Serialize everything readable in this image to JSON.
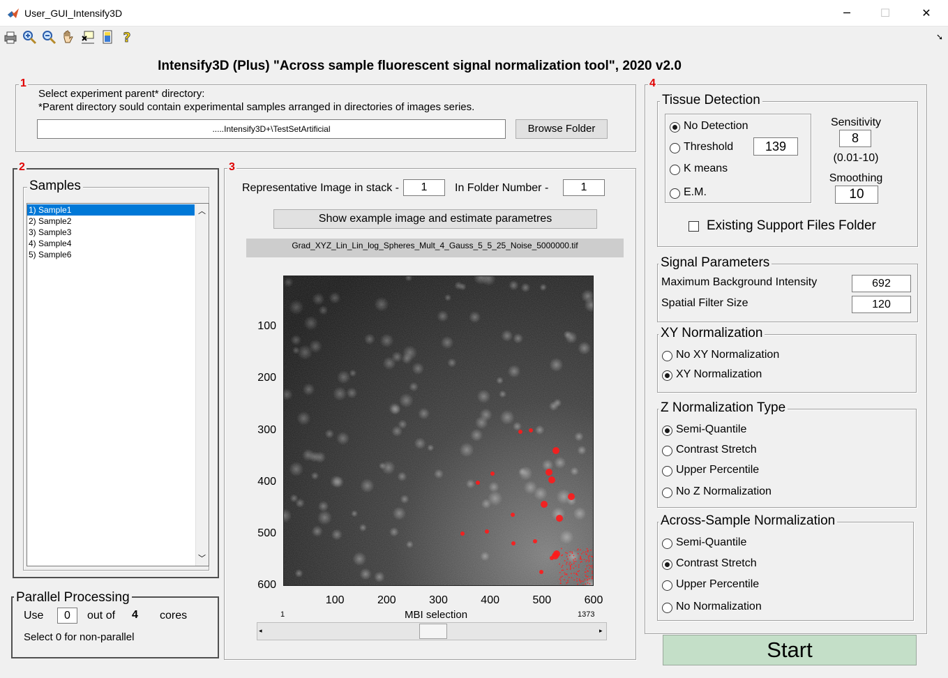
{
  "window": {
    "title": "User_GUI_Intensify3D",
    "minimize": "─",
    "maximize": "☐",
    "close": "✕"
  },
  "toolbar": {
    "icons": [
      "print-icon",
      "zoom-in-icon",
      "zoom-out-icon",
      "pan-hand-icon",
      "data-cursor-icon",
      "colorbar-icon",
      "help-icon"
    ]
  },
  "header": {
    "title": "Intensify3D (Plus)  \"Across sample fluorescent signal normalization tool\",  2020 v2.0"
  },
  "panel1": {
    "number": "1",
    "line1": "Select experiment parent* directory:",
    "line2": "*Parent directory sould contain experimental samples arranged in directories of images series.",
    "path": ".....Intensify3D+\\TestSetArtificial",
    "browse_label": "Browse Folder"
  },
  "panel2": {
    "number": "2",
    "legend": "Samples",
    "samples": [
      "1) Sample1",
      "2) Sample2",
      "3) Sample3",
      "4) Sample4",
      "5) Sample6"
    ]
  },
  "parallel": {
    "legend": "Parallel Processing",
    "use": "Use",
    "cores_value": "0",
    "out_of": "out of",
    "max_cores": "4",
    "cores": "cores",
    "hint": "Select 0 for non-parallel"
  },
  "panel3": {
    "number": "3",
    "rep_label": "Representative Image in stack -",
    "rep_value": "1",
    "folder_label": "In Folder Number -",
    "folder_value": "1",
    "show_button": "Show example image and estimate parametres",
    "filename": "Grad_XYZ_Lin_Lin_log_Spheres_Mult_4_Gauss_5_5_25_Noise_5000000.tif",
    "y_ticks": [
      "100",
      "200",
      "300",
      "400",
      "500",
      "600"
    ],
    "x_ticks": [
      "100",
      "200",
      "300",
      "400",
      "500",
      "600"
    ],
    "slider_min": "1",
    "slider_label": "MBI selection",
    "slider_max": "1373",
    "slider_value_fraction": 0.46
  },
  "panel4": {
    "number": "4",
    "tissue": {
      "legend": "Tissue Detection",
      "options": [
        "No Detection",
        "Threshold",
        "K means",
        "E.M."
      ],
      "selected": 0,
      "threshold_value": "139",
      "sensitivity_label": "Sensitivity",
      "sensitivity_value": "8",
      "sensitivity_range": "(0.01-10)",
      "smoothing_label": "Smoothing",
      "smoothing_value": "10",
      "support_label": "Existing Support Files Folder"
    },
    "signal": {
      "legend": "Signal Parameters",
      "mbi_label": "Maximum Background Intensity",
      "mbi_value": "692",
      "sfs_label": "Spatial Filter Size",
      "sfs_value": "120"
    },
    "xy": {
      "legend": "XY Normalization",
      "options": [
        "No XY Normalization",
        "XY Normalization"
      ],
      "selected": 1
    },
    "z": {
      "legend": "Z Normalization Type",
      "options": [
        "Semi-Quantile",
        "Contrast Stretch",
        "Upper Percentile",
        "No Z Normalization"
      ],
      "selected": 0
    },
    "across": {
      "legend": "Across-Sample Normalization",
      "options": [
        "Semi-Quantile",
        "Contrast Stretch",
        "Upper Percentile",
        "No Normalization"
      ],
      "selected": 1
    }
  },
  "start_label": "Start",
  "colors": {
    "start_bg": "#c4dfc8",
    "selection": "#0078d7",
    "label_red": "#e00000"
  }
}
